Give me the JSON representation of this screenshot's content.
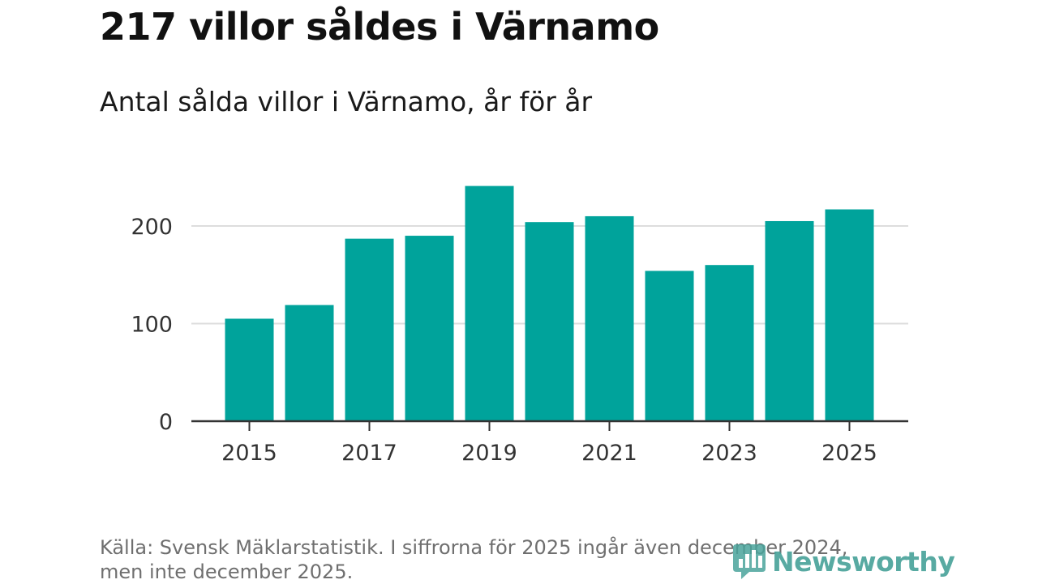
{
  "header": {
    "title": "217 villor såldes i Värnamo",
    "subtitle": "Antal sålda villor i Värnamo, år för år"
  },
  "footer": {
    "source_line1": "Källa: Svensk Mäklarstatistik. I siffrorna för 2025 ingår även december 2024,",
    "source_line2": "men inte december 2025.",
    "logo_text": "Newsworthy"
  },
  "colors": {
    "bar": "#00a39b",
    "grid": "#dddddd",
    "axis": "#333333",
    "logo": "#4aa39b"
  },
  "chart_data": {
    "type": "bar",
    "title": "Antal sålda villor i Värnamo, år för år",
    "xlabel": "",
    "ylabel": "",
    "categories": [
      "2015",
      "2016",
      "2017",
      "2018",
      "2019",
      "2020",
      "2021",
      "2022",
      "2023",
      "2024",
      "2025"
    ],
    "values": [
      105,
      119,
      187,
      190,
      241,
      204,
      210,
      154,
      160,
      205,
      217
    ],
    "x_tick_labels": [
      "2015",
      "2017",
      "2019",
      "2021",
      "2023",
      "2025"
    ],
    "y_ticks": [
      0,
      100,
      200
    ],
    "ylim": [
      0,
      250
    ],
    "grid": true,
    "legend": "none"
  }
}
